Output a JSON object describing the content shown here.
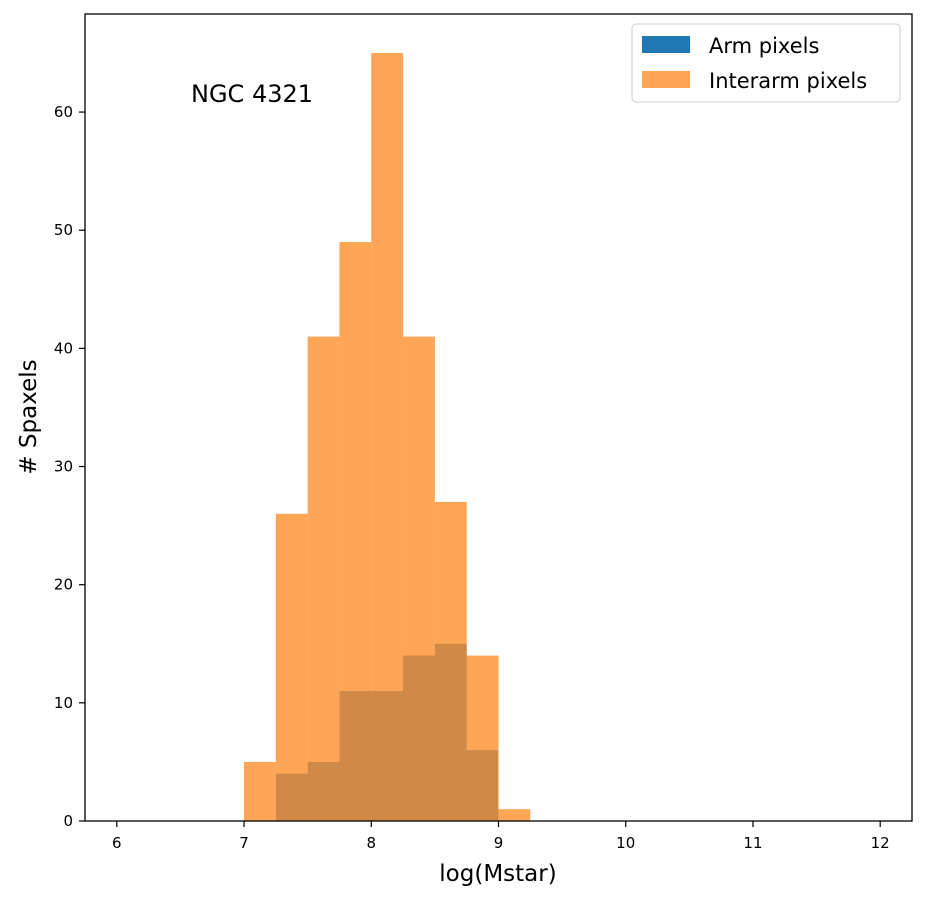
{
  "chart_data": {
    "type": "bar",
    "subtype": "histogram",
    "xlabel": "log(Mstar)",
    "ylabel": "# Spaxels",
    "annotation": "NGC 4321",
    "xlim": [
      5.75,
      12.25
    ],
    "ylim": [
      0,
      68.3
    ],
    "xticks": [
      6,
      7,
      8,
      9,
      10,
      11,
      12
    ],
    "xtick_labels": [
      "6",
      "7",
      "8",
      "9",
      "10",
      "11",
      "12"
    ],
    "yticks": [
      0,
      10,
      20,
      30,
      40,
      50,
      60
    ],
    "ytick_labels": [
      "0",
      "10",
      "20",
      "30",
      "40",
      "50",
      "60"
    ],
    "legend_position": "upper right",
    "series": [
      {
        "name": "Arm pixels",
        "color": "#1f77b4",
        "alpha": 0.7,
        "bin_edges": [
          7.25,
          7.5,
          7.75,
          8.0,
          8.25,
          8.5,
          8.75,
          9.0
        ],
        "values": [
          4,
          5,
          11,
          11,
          14,
          15,
          6
        ]
      },
      {
        "name": "Interarm pixels",
        "color": "#ff7f0e",
        "alpha": 0.7,
        "bin_edges": [
          7.0,
          7.25,
          7.5,
          7.75,
          8.0,
          8.25,
          8.5,
          8.75,
          9.0,
          9.25
        ],
        "values": [
          5,
          26,
          41,
          49,
          65,
          41,
          27,
          14,
          1
        ]
      }
    ]
  },
  "legend": {
    "items": [
      {
        "label": "Arm pixels",
        "color": "#1f77b4"
      },
      {
        "label": "Interarm pixels",
        "color": "#ff7f0e"
      }
    ]
  }
}
